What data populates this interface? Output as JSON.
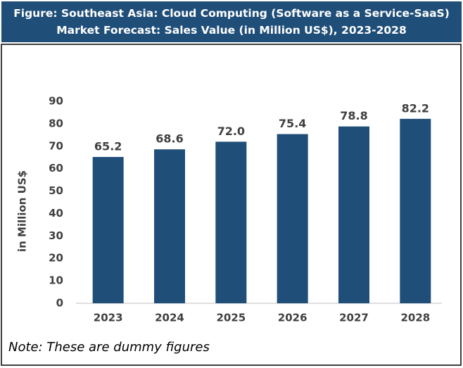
{
  "chart_data": {
    "type": "bar",
    "title": "Figure: Southeast Asia: Cloud Computing (Software as a Service-SaaS) Market Forecast: Sales Value (in Million US$), 2023-2028",
    "y_label": "in Million US$",
    "note": "Note: These are dummy figures",
    "categories": [
      "2023",
      "2024",
      "2025",
      "2026",
      "2027",
      "2028"
    ],
    "values": [
      65.2,
      68.6,
      72.0,
      75.4,
      78.8,
      82.2
    ],
    "value_labels": [
      "65.2",
      "68.6",
      "72.0",
      "75.4",
      "78.8",
      "82.2"
    ],
    "color": "#1f4e79",
    "ylim": [
      0,
      90
    ],
    "yticks": [
      0,
      10,
      20,
      30,
      40,
      50,
      60,
      70,
      80,
      90
    ],
    "grid": false
  }
}
